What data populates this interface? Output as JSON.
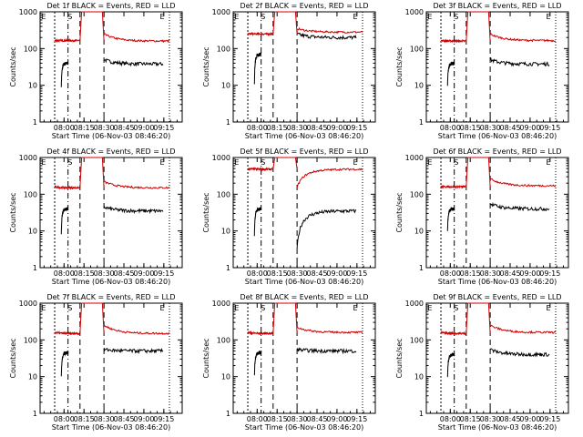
{
  "figure": {
    "ylabel": "Counts/sec",
    "xlabel": "Start Time (06-Nov-03 08:46:20)",
    "y_ticks": [
      "1",
      "10",
      "100",
      "1000"
    ],
    "x_ticks": [
      "08:00",
      "08:15",
      "08:30",
      "08:45",
      "09:00",
      "09:15"
    ],
    "markers": {
      "E": "E",
      "S": "S"
    },
    "colors": {
      "events": "#000000",
      "lld": "#d00000",
      "axes": "#000000"
    }
  },
  "chart_data": [
    {
      "type": "line",
      "title": "Det 1f BLACK = Events, RED = LLD",
      "ylim": [
        1,
        1000
      ],
      "yscale": "log",
      "series": [
        {
          "name": "BLACK = Events",
          "segments": [
            {
              "x0": 7.966,
              "x1": 8.05,
              "start": 10,
              "level": 40
            },
            {
              "x0": 8.5,
              "x1": 9.24,
              "start": 50,
              "level": 38
            }
          ]
        },
        {
          "name": "RED = LLD",
          "segments": [
            {
              "x0": 7.883,
              "x1": 8.2,
              "start": 165,
              "level": 165
            },
            {
              "x0": 8.5,
              "x1": 9.32,
              "start": 250,
              "level": 160
            }
          ]
        }
      ]
    },
    {
      "type": "line",
      "title": "Det 2f BLACK = Events, RED = LLD",
      "ylim": [
        1,
        1000
      ],
      "yscale": "log",
      "series": [
        {
          "name": "BLACK = Events",
          "segments": [
            {
              "x0": 7.966,
              "x1": 8.05,
              "start": 10,
              "level": 70
            },
            {
              "x0": 8.5,
              "x1": 9.24,
              "start": 250,
              "level": 200
            }
          ]
        },
        {
          "name": "RED = LLD",
          "segments": [
            {
              "x0": 7.883,
              "x1": 8.2,
              "start": 250,
              "level": 250
            },
            {
              "x0": 8.5,
              "x1": 9.32,
              "start": 350,
              "level": 280
            }
          ]
        }
      ]
    },
    {
      "type": "line",
      "title": "Det 3f BLACK = Events, RED = LLD",
      "ylim": [
        1,
        1000
      ],
      "yscale": "log",
      "series": [
        {
          "name": "BLACK = Events",
          "segments": [
            {
              "x0": 7.966,
              "x1": 8.05,
              "start": 10,
              "level": 40
            },
            {
              "x0": 8.5,
              "x1": 9.24,
              "start": 50,
              "level": 38
            }
          ]
        },
        {
          "name": "RED = LLD",
          "segments": [
            {
              "x0": 7.883,
              "x1": 8.2,
              "start": 165,
              "level": 160
            },
            {
              "x0": 8.5,
              "x1": 9.32,
              "start": 250,
              "level": 165
            }
          ]
        }
      ]
    },
    {
      "type": "line",
      "title": "Det 4f BLACK = Events, RED = LLD",
      "ylim": [
        1,
        1000
      ],
      "yscale": "log",
      "series": [
        {
          "name": "BLACK = Events",
          "segments": [
            {
              "x0": 7.966,
              "x1": 8.05,
              "start": 8,
              "level": 40
            },
            {
              "x0": 8.5,
              "x1": 9.24,
              "start": 45,
              "level": 35
            }
          ]
        },
        {
          "name": "RED = LLD",
          "segments": [
            {
              "x0": 7.883,
              "x1": 8.2,
              "start": 160,
              "level": 150
            },
            {
              "x0": 8.5,
              "x1": 9.32,
              "start": 220,
              "level": 150
            }
          ]
        }
      ]
    },
    {
      "type": "line",
      "title": "Det 5f BLACK = Events, RED = LLD",
      "ylim": [
        1,
        1000
      ],
      "yscale": "log",
      "series": [
        {
          "name": "BLACK = Events",
          "segments": [
            {
              "x0": 7.966,
              "x1": 8.05,
              "start": 8,
              "level": 40
            },
            {
              "x0": 8.5,
              "x1": 9.24,
              "start": 3,
              "level": 35
            }
          ]
        },
        {
          "name": "RED = LLD",
          "segments": [
            {
              "x0": 7.883,
              "x1": 8.2,
              "start": 500,
              "level": 480
            },
            {
              "x0": 8.5,
              "x1": 9.32,
              "start": 150,
              "level": 480
            }
          ]
        }
      ]
    },
    {
      "type": "line",
      "title": "Det 6f BLACK = Events, RED = LLD",
      "ylim": [
        1,
        1000
      ],
      "yscale": "log",
      "series": [
        {
          "name": "BLACK = Events",
          "segments": [
            {
              "x0": 7.966,
              "x1": 8.05,
              "start": 10,
              "level": 40
            },
            {
              "x0": 8.5,
              "x1": 9.24,
              "start": 55,
              "level": 40
            }
          ]
        },
        {
          "name": "RED = LLD",
          "segments": [
            {
              "x0": 7.883,
              "x1": 8.2,
              "start": 160,
              "level": 160
            },
            {
              "x0": 8.5,
              "x1": 9.32,
              "start": 260,
              "level": 170
            }
          ]
        }
      ]
    },
    {
      "type": "line",
      "title": "Det 7f BLACK = Events, RED = LLD",
      "ylim": [
        1,
        1000
      ],
      "yscale": "log",
      "series": [
        {
          "name": "BLACK = Events",
          "segments": [
            {
              "x0": 7.966,
              "x1": 8.05,
              "start": 10,
              "level": 45
            },
            {
              "x0": 8.5,
              "x1": 9.24,
              "start": 55,
              "level": 50
            }
          ]
        },
        {
          "name": "RED = LLD",
          "segments": [
            {
              "x0": 7.883,
              "x1": 8.2,
              "start": 160,
              "level": 150
            },
            {
              "x0": 8.5,
              "x1": 9.32,
              "start": 250,
              "level": 150
            }
          ]
        }
      ]
    },
    {
      "type": "line",
      "title": "Det 8f BLACK = Events, RED = LLD",
      "ylim": [
        1,
        1000
      ],
      "yscale": "log",
      "series": [
        {
          "name": "BLACK = Events",
          "segments": [
            {
              "x0": 7.966,
              "x1": 8.05,
              "start": 10,
              "level": 45
            },
            {
              "x0": 8.5,
              "x1": 9.24,
              "start": 55,
              "level": 50
            }
          ]
        },
        {
          "name": "RED = LLD",
          "segments": [
            {
              "x0": 7.883,
              "x1": 8.2,
              "start": 160,
              "level": 150
            },
            {
              "x0": 8.5,
              "x1": 9.32,
              "start": 220,
              "level": 160
            }
          ]
        }
      ]
    },
    {
      "type": "line",
      "title": "Det 9f BLACK = Events, RED = LLD",
      "ylim": [
        1,
        1000
      ],
      "yscale": "log",
      "series": [
        {
          "name": "BLACK = Events",
          "segments": [
            {
              "x0": 7.966,
              "x1": 8.05,
              "start": 10,
              "level": 40
            },
            {
              "x0": 8.5,
              "x1": 9.24,
              "start": 55,
              "level": 40
            }
          ]
        },
        {
          "name": "RED = LLD",
          "segments": [
            {
              "x0": 7.883,
              "x1": 8.2,
              "start": 160,
              "level": 150
            },
            {
              "x0": 8.5,
              "x1": 9.32,
              "start": 250,
              "level": 160
            }
          ]
        }
      ]
    }
  ]
}
